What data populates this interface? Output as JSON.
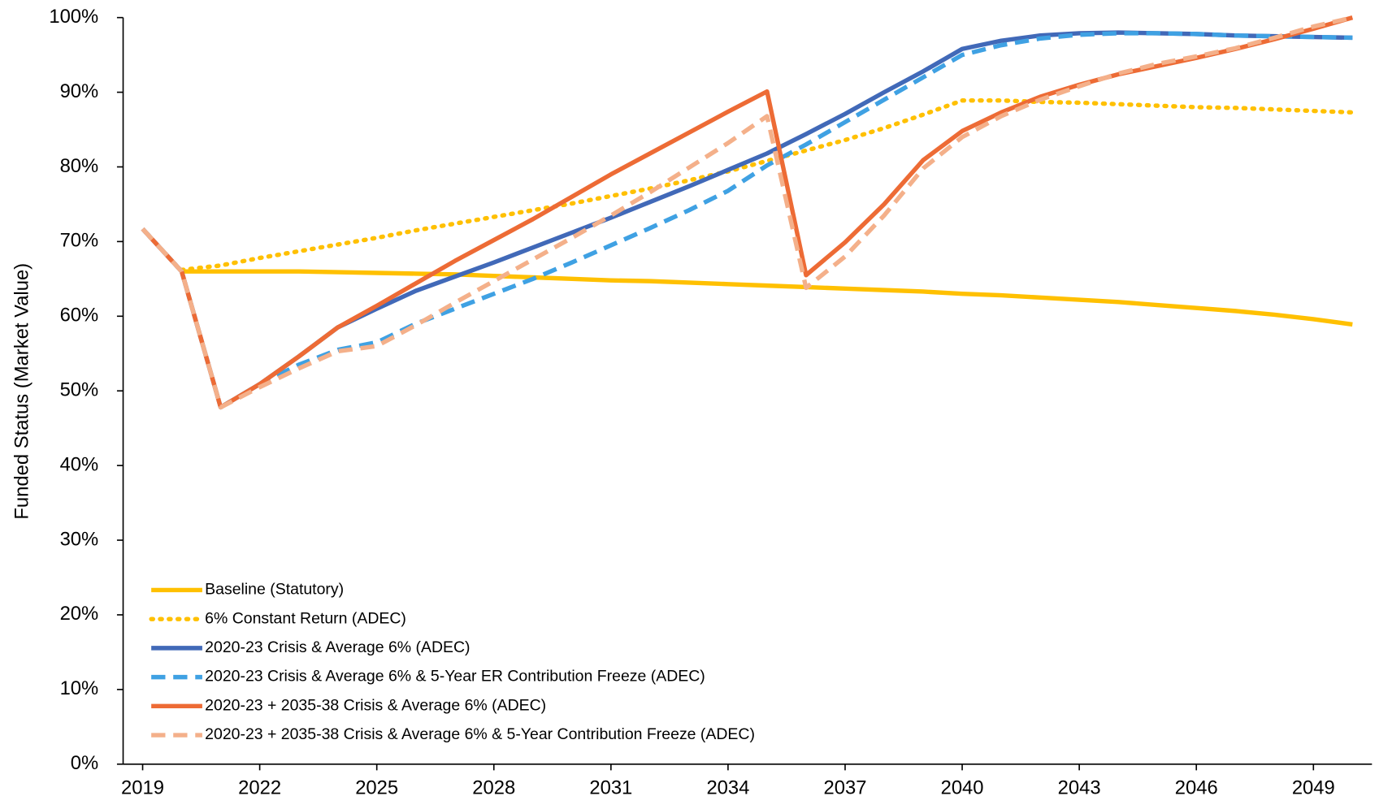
{
  "chart_data": {
    "type": "line",
    "y_label": "Funded Status (Market Value)",
    "x": [
      2019,
      2020,
      2021,
      2022,
      2023,
      2024,
      2025,
      2026,
      2027,
      2028,
      2029,
      2030,
      2031,
      2032,
      2033,
      2034,
      2035,
      2036,
      2037,
      2038,
      2039,
      2040,
      2041,
      2042,
      2043,
      2044,
      2045,
      2046,
      2047,
      2048,
      2049,
      2050
    ],
    "xlim": [
      2018.5,
      2050.5
    ],
    "xticks": [
      2019,
      2022,
      2025,
      2028,
      2031,
      2034,
      2037,
      2040,
      2043,
      2046,
      2049
    ],
    "ylim": [
      0,
      100
    ],
    "yticks": [
      {
        "value": 0,
        "label": "0%"
      },
      {
        "value": 10,
        "label": "10%"
      },
      {
        "value": 20,
        "label": "20%"
      },
      {
        "value": 30,
        "label": "30%"
      },
      {
        "value": 40,
        "label": "40%"
      },
      {
        "value": 50,
        "label": "50%"
      },
      {
        "value": 60,
        "label": "60%"
      },
      {
        "value": 70,
        "label": "70%"
      },
      {
        "value": 80,
        "label": "80%"
      },
      {
        "value": 90,
        "label": "90%"
      },
      {
        "value": 100,
        "label": "100%"
      }
    ],
    "grid": false,
    "legend": "lower left",
    "series": [
      {
        "name": "Baseline (Statutory)",
        "color": "#ffc000",
        "style": "solid",
        "values": [
          null,
          66.0,
          66.0,
          66.0,
          66.0,
          65.9,
          65.8,
          65.7,
          65.6,
          65.4,
          65.2,
          65.0,
          64.8,
          64.7,
          64.5,
          64.3,
          64.1,
          63.9,
          63.7,
          63.5,
          63.3,
          63.0,
          62.8,
          62.5,
          62.2,
          61.9,
          61.5,
          61.1,
          60.7,
          60.2,
          59.6,
          58.9
        ]
      },
      {
        "name": "6% Constant Return (ADEC)",
        "color": "#ffc000",
        "style": "dotted",
        "values": [
          null,
          66.2,
          66.8,
          67.8,
          68.7,
          69.6,
          70.5,
          71.5,
          72.4,
          73.3,
          74.2,
          75.1,
          76.1,
          77.1,
          78.2,
          79.4,
          80.8,
          82.2,
          83.6,
          85.2,
          87.0,
          88.9,
          88.9,
          88.7,
          88.6,
          88.4,
          88.2,
          88.0,
          87.9,
          87.7,
          87.5,
          87.3
        ]
      },
      {
        "name": "2020-23 Crisis & Average 6% (ADEC)",
        "color": "#4169b8",
        "style": "solid",
        "values": [
          71.7,
          66.0,
          47.8,
          50.9,
          54.6,
          58.5,
          61.0,
          63.4,
          65.3,
          67.2,
          69.2,
          71.2,
          73.2,
          75.3,
          77.4,
          79.6,
          81.8,
          84.4,
          87.1,
          90.0,
          92.8,
          95.8,
          96.9,
          97.6,
          97.9,
          98.0,
          97.9,
          97.8,
          97.6,
          97.5,
          97.4,
          97.3
        ]
      },
      {
        "name": "2020-23 Crisis & Average 6% & 5-Year ER Contribution Freeze (ADEC)",
        "color": "#3fa1e3",
        "style": "dashed",
        "values": [
          71.7,
          66.0,
          47.8,
          50.9,
          53.5,
          55.5,
          56.5,
          59.0,
          61.0,
          63.0,
          65.0,
          67.2,
          69.5,
          71.8,
          74.2,
          76.8,
          80.2,
          83.0,
          86.0,
          89.0,
          92.0,
          95.0,
          96.3,
          97.2,
          97.7,
          97.9,
          97.9,
          97.8,
          97.6,
          97.5,
          97.4,
          97.3
        ]
      },
      {
        "name": "2020-23 + 2035-38 Crisis & Average 6% (ADEC)",
        "color": "#ed6b35",
        "style": "solid",
        "values": [
          71.7,
          66.0,
          47.8,
          50.9,
          54.6,
          58.5,
          61.4,
          64.4,
          67.4,
          70.2,
          73.0,
          76.0,
          79.0,
          81.8,
          84.6,
          87.4,
          90.1,
          65.5,
          69.9,
          75.0,
          80.9,
          84.8,
          87.3,
          89.4,
          91.0,
          92.4,
          93.5,
          94.6,
          95.8,
          97.1,
          98.5,
          100.0
        ]
      },
      {
        "name": "2020-23 + 2035-38 Crisis & Average 6% & 5-Year Contribution Freeze (ADEC)",
        "color": "#f4b08a",
        "style": "dashed",
        "values": [
          71.7,
          66.0,
          47.8,
          50.5,
          53.0,
          55.3,
          56.0,
          58.8,
          61.8,
          64.7,
          67.6,
          70.5,
          73.5,
          76.6,
          79.9,
          83.2,
          86.8,
          63.8,
          68.0,
          73.5,
          79.8,
          84.0,
          86.8,
          89.0,
          90.8,
          92.5,
          93.8,
          94.8,
          95.9,
          97.3,
          98.8,
          100.0
        ]
      }
    ]
  }
}
